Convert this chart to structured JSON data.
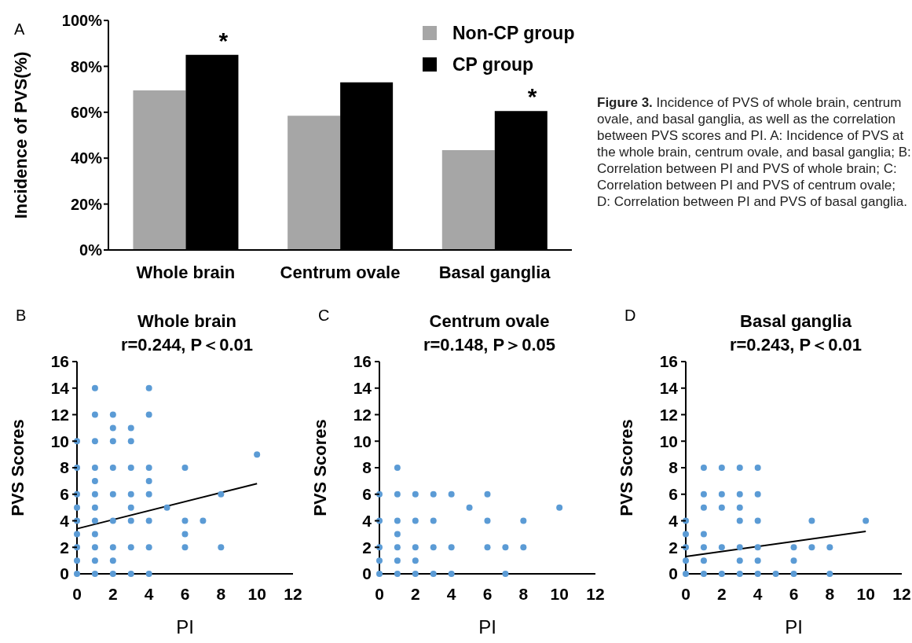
{
  "chart_data": [
    {
      "type": "bar",
      "categories": [
        "Whole brain",
        "Centrum ovale",
        "Basal  ganglia"
      ],
      "ylabel": "Incidence of PVS(%)",
      "ylim": [
        0,
        100
      ],
      "yticks": [
        {
          "value": 0,
          "label": "0%"
        },
        {
          "value": 20,
          "label": "20%"
        },
        {
          "value": 40,
          "label": "40%"
        },
        {
          "value": 60,
          "label": "60%"
        },
        {
          "value": 80,
          "label": "80%"
        },
        {
          "value": 100,
          "label": "100%"
        }
      ],
      "series": [
        {
          "name": "Non-CP group",
          "color": "#a6a6a6",
          "values": [
            69.5,
            58.5,
            43.5
          ]
        },
        {
          "name": "CP group",
          "color": "#000000",
          "values": [
            85,
            73,
            60.5
          ]
        }
      ],
      "legend": "top right",
      "annotations": [
        "A",
        "Figure 3.",
        "Incidence of PVS of whole brain, centrum ovale, and basal ganglia, as well as the correlation between PVS scores and PI. A: Incidence of PVS at the whole brain, centrum ovale, and basal ganglia; B: Correlation between PI and PVS of whole brain; C: Correlation between PI and PVS of centrum ovale; D: Correlation between PI and PVS of basal ganglia.",
        {
          "text": "*",
          "x": "Whole brain",
          "y": 85
        },
        {
          "text": "*",
          "x": "Basal  ganglia",
          "y": 60.5
        }
      ]
    },
    {
      "type": "scatter",
      "title": "Whole brain",
      "subtitle": "r=0.244, P＜0.01",
      "xlabel": "PI",
      "ylabel": "PVS Scores",
      "xlim": [
        0,
        12
      ],
      "xticks": [
        0,
        2,
        4,
        6,
        8,
        10,
        12
      ],
      "ylim": [
        0,
        16
      ],
      "yticks": [
        0,
        2,
        4,
        6,
        8,
        10,
        12,
        14,
        16
      ],
      "marker": "circle",
      "annotations": [
        "B"
      ],
      "series": [
        {
          "color": "#5b9bd5",
          "x": [
            0,
            0,
            0,
            0,
            0,
            0,
            0,
            0,
            0,
            1,
            1,
            1,
            1,
            1,
            1,
            1,
            1,
            1,
            1,
            1,
            1,
            2,
            2,
            2,
            2,
            2,
            2,
            2,
            2,
            2,
            3,
            3,
            3,
            3,
            3,
            3,
            3,
            3,
            4,
            4,
            4,
            4,
            4,
            4,
            4,
            4,
            5,
            6,
            6,
            6,
            6,
            7,
            8,
            8,
            10
          ],
          "values": [
            0,
            1,
            2,
            3,
            4,
            5,
            6,
            8,
            10,
            0,
            1,
            2,
            3,
            4,
            5,
            6,
            7,
            8,
            10,
            12,
            14,
            0,
            1,
            2,
            4,
            6,
            8,
            10,
            11,
            12,
            0,
            2,
            4,
            5,
            6,
            8,
            10,
            11,
            0,
            2,
            4,
            6,
            7,
            8,
            12,
            14,
            5,
            2,
            3,
            4,
            8,
            4,
            2,
            6,
            9
          ]
        },
        {
          "type": "line",
          "color": "#000000",
          "x": [
            0,
            10
          ],
          "values": [
            3.4,
            6.8
          ],
          "marker": "none",
          "line_style": "solid"
        }
      ]
    },
    {
      "type": "scatter",
      "title": "Centrum ovale",
      "subtitle": "r=0.148, P＞0.05",
      "xlabel": "PI",
      "ylabel": "PVS Scores",
      "xlim": [
        0,
        12
      ],
      "xticks": [
        0,
        2,
        4,
        6,
        8,
        10,
        12
      ],
      "ylim": [
        0,
        16
      ],
      "yticks": [
        0,
        2,
        4,
        6,
        8,
        10,
        12,
        14,
        16
      ],
      "marker": "circle",
      "annotations": [
        "C"
      ],
      "series": [
        {
          "color": "#5b9bd5",
          "x": [
            0,
            0,
            0,
            0,
            0,
            1,
            1,
            1,
            1,
            1,
            1,
            1,
            2,
            2,
            2,
            2,
            2,
            3,
            3,
            3,
            3,
            4,
            4,
            4,
            5,
            6,
            6,
            6,
            7,
            7,
            8,
            8,
            10
          ],
          "values": [
            0,
            1,
            2,
            4,
            6,
            0,
            1,
            2,
            3,
            4,
            6,
            8,
            0,
            1,
            2,
            4,
            6,
            0,
            2,
            4,
            6,
            0,
            2,
            6,
            5,
            2,
            4,
            6,
            0,
            2,
            2,
            4,
            5
          ]
        }
      ]
    },
    {
      "type": "scatter",
      "title": "Basal  ganglia",
      "subtitle": "r=0.243, P＜0.01",
      "xlabel": "PI",
      "ylabel": "PVS Scores",
      "xlim": [
        0,
        12
      ],
      "xticks": [
        0,
        2,
        4,
        6,
        8,
        10,
        12
      ],
      "ylim": [
        0,
        16
      ],
      "yticks": [
        0,
        2,
        4,
        6,
        8,
        10,
        12,
        14,
        16
      ],
      "marker": "circle",
      "annotations": [
        "D"
      ],
      "series": [
        {
          "color": "#5b9bd5",
          "x": [
            0,
            0,
            0,
            0,
            0,
            1,
            1,
            1,
            1,
            1,
            1,
            1,
            2,
            2,
            2,
            2,
            2,
            3,
            3,
            3,
            3,
            3,
            3,
            3,
            4,
            4,
            4,
            4,
            4,
            4,
            5,
            6,
            6,
            6,
            7,
            7,
            8,
            8,
            10
          ],
          "values": [
            0,
            1,
            2,
            3,
            4,
            0,
            1,
            2,
            3,
            5,
            6,
            8,
            0,
            2,
            5,
            6,
            8,
            0,
            1,
            2,
            4,
            5,
            6,
            8,
            0,
            1,
            2,
            4,
            6,
            8,
            0,
            0,
            1,
            2,
            2,
            4,
            0,
            2,
            4
          ]
        },
        {
          "type": "line",
          "color": "#000000",
          "x": [
            0,
            10
          ],
          "values": [
            1.3,
            3.2
          ],
          "marker": "none",
          "line_style": "solid"
        }
      ]
    }
  ]
}
